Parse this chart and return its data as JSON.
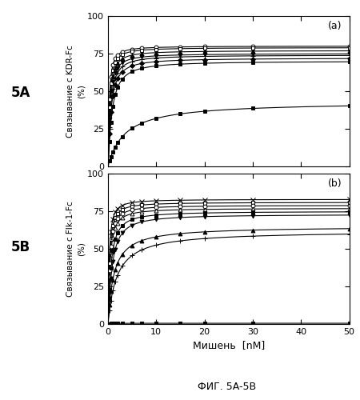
{
  "title": "ФИГ. 5A-5B",
  "xlabel": "Мишень  [nM]",
  "panel_a_label": "(a)",
  "panel_b_label": "(b)",
  "ylabel_a": "Связывание с KDR-Fc\n(%)",
  "ylabel_b": "Связывание с Flk-1-Fc\n(%)",
  "fig_label_a": "5A",
  "fig_label_b": "5B",
  "x_data": [
    0.3,
    0.6,
    1.0,
    1.5,
    2.0,
    3.0,
    5.0,
    7.0,
    10.0,
    15.0,
    20.0,
    30.0,
    50.0
  ],
  "panel_a": {
    "curves": [
      {
        "Bmax": 80,
        "Kd": 0.25,
        "n": 1.2,
        "marker": "o",
        "mfc": "white",
        "mec": "black",
        "ms": 3.5
      },
      {
        "Bmax": 79,
        "Kd": 0.3,
        "n": 1.2,
        "marker": "s",
        "mfc": "white",
        "mec": "black",
        "ms": 3.5
      },
      {
        "Bmax": 77,
        "Kd": 0.35,
        "n": 1.2,
        "marker": "^",
        "mfc": "black",
        "mec": "black",
        "ms": 3.5
      },
      {
        "Bmax": 75,
        "Kd": 0.4,
        "n": 1.2,
        "marker": "v",
        "mfc": "black",
        "mec": "black",
        "ms": 3.5
      },
      {
        "Bmax": 74,
        "Kd": 0.5,
        "n": 1.2,
        "marker": "+",
        "mfc": "black",
        "mec": "black",
        "ms": 5
      },
      {
        "Bmax": 72,
        "Kd": 0.6,
        "n": 1.2,
        "marker": "D",
        "mfc": "black",
        "mec": "black",
        "ms": 3
      },
      {
        "Bmax": 70,
        "Kd": 0.8,
        "n": 1.2,
        "marker": "s",
        "mfc": "black",
        "mec": "black",
        "ms": 3.5
      },
      {
        "Bmax": 43,
        "Kd": 3.5,
        "n": 1.0,
        "marker": "s",
        "mfc": "black",
        "mec": "black",
        "ms": 3.5
      }
    ]
  },
  "panel_b": {
    "curves": [
      {
        "Bmax": 83,
        "Kd": 0.25,
        "n": 1.2,
        "marker": "x",
        "mfc": "black",
        "mec": "black",
        "ms": 4
      },
      {
        "Bmax": 81,
        "Kd": 0.3,
        "n": 1.2,
        "marker": "s",
        "mfc": "white",
        "mec": "black",
        "ms": 3.5
      },
      {
        "Bmax": 79,
        "Kd": 0.35,
        "n": 1.2,
        "marker": "o",
        "mfc": "white",
        "mec": "black",
        "ms": 3.5
      },
      {
        "Bmax": 77,
        "Kd": 0.4,
        "n": 1.2,
        "marker": "^",
        "mfc": "white",
        "mec": "black",
        "ms": 3.5
      },
      {
        "Bmax": 75,
        "Kd": 0.6,
        "n": 1.2,
        "marker": "s",
        "mfc": "black",
        "mec": "black",
        "ms": 3.5
      },
      {
        "Bmax": 73,
        "Kd": 0.8,
        "n": 1.2,
        "marker": "v",
        "mfc": "black",
        "mec": "black",
        "ms": 3.5
      },
      {
        "Bmax": 65,
        "Kd": 1.2,
        "n": 1.0,
        "marker": "^",
        "mfc": "black",
        "mec": "black",
        "ms": 3.5
      },
      {
        "Bmax": 62,
        "Kd": 1.8,
        "n": 1.0,
        "marker": "+",
        "mfc": "black",
        "mec": "black",
        "ms": 5
      },
      {
        "Bmax": 0.5,
        "Kd": 0.3,
        "n": 1.0,
        "marker": "s",
        "mfc": "black",
        "mec": "black",
        "ms": 3.5
      }
    ]
  },
  "xlim": [
    0,
    50
  ],
  "ylim": [
    0,
    100
  ],
  "xticks": [
    0,
    10,
    20,
    30,
    40,
    50
  ],
  "yticks": [
    0,
    25,
    50,
    75,
    100
  ]
}
